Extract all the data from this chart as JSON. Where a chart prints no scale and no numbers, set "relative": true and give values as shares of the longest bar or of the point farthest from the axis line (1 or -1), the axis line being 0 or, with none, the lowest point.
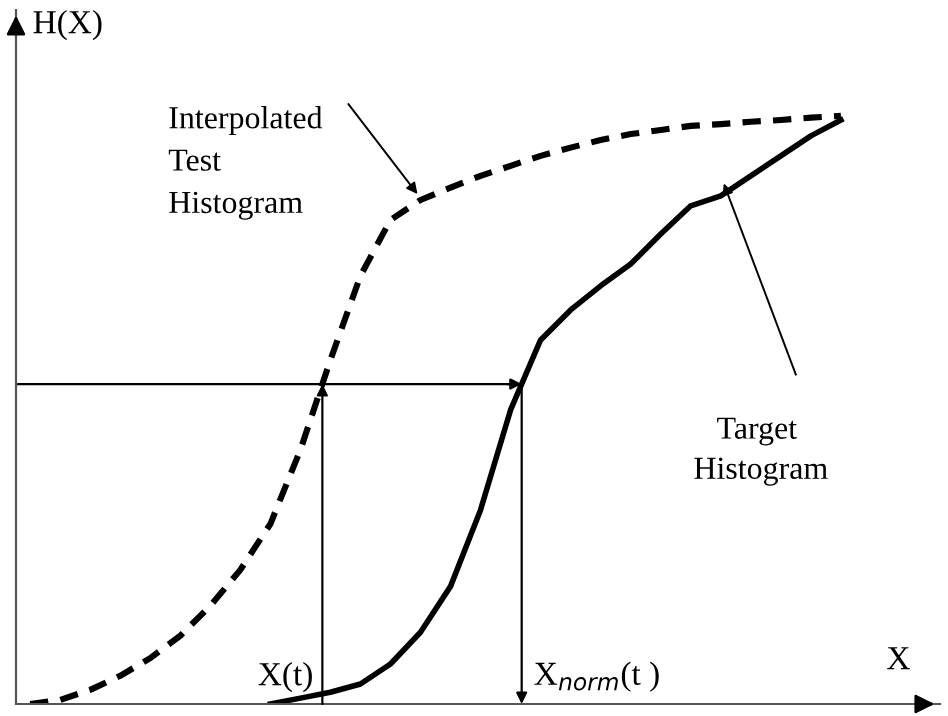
{
  "chart_data": {
    "type": "line",
    "relative": true,
    "xlabel": "X",
    "ylabel": "H(X)",
    "categories": [
      null,
      null,
      null,
      null,
      null,
      null,
      null,
      null,
      null,
      null,
      null,
      null,
      null,
      null,
      null,
      null,
      null,
      null,
      null,
      null,
      null,
      null,
      null,
      null,
      null,
      null,
      null,
      null
    ],
    "series": [
      {
        "color": "#000000",
        "line_style": "dashed",
        "values": [
          0,
          0.007,
          0.024,
          0.048,
          0.078,
          0.116,
          0.167,
          0.228,
          0.306,
          0.432,
          0.585,
          0.728,
          0.823,
          0.857,
          0.878,
          0.898,
          0.915,
          0.932,
          0.946,
          0.959,
          0.969,
          0.976,
          0.983,
          0.986,
          0.99,
          0.993,
          0.997,
          1.0
        ]
      },
      {
        "color": "#000000",
        "line_style": "solid",
        "values": [
          null,
          null,
          null,
          null,
          null,
          null,
          null,
          null,
          0,
          0.01,
          0.02,
          0.034,
          0.068,
          0.122,
          0.2,
          0.33,
          0.5,
          0.619,
          0.67,
          0.711,
          0.748,
          0.799,
          0.847,
          0.864,
          0.898,
          0.932,
          0.966,
          0.993
        ]
      }
    ],
    "ref_lines": [
      {
        "axis": "y",
        "value": 0.544,
        "label": null
      }
    ],
    "annotations": [
      "Interpolated\nTest\nHistogram",
      "Target\n Histogram",
      "X(t)",
      "X$_{norm}$(t )"
    ],
    "marker": "none",
    "legend": false
  }
}
